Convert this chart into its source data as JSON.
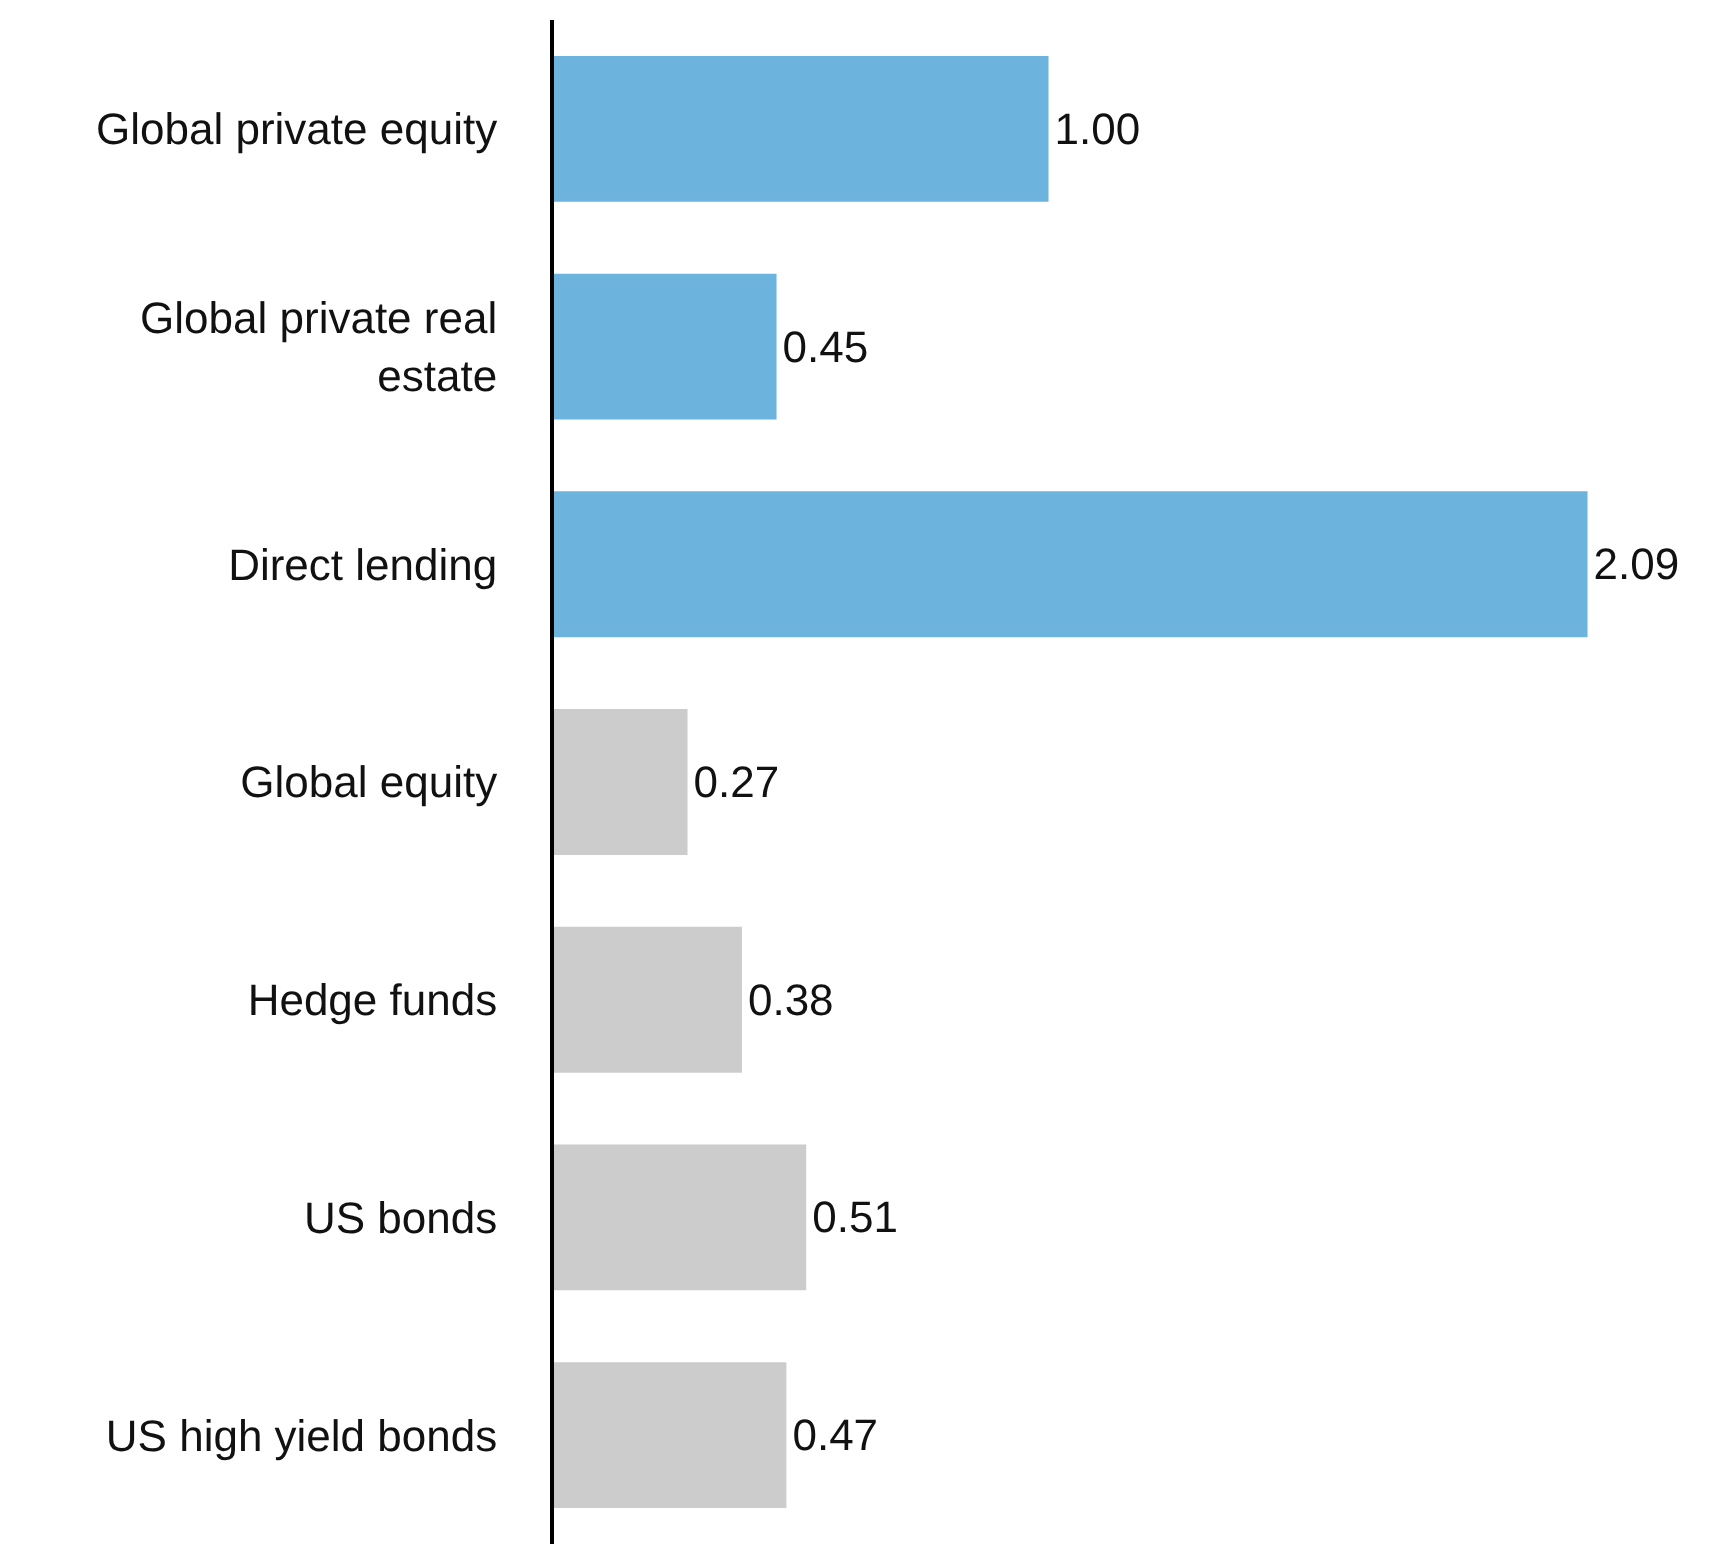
{
  "chart_data": {
    "type": "bar",
    "orientation": "horizontal",
    "categories": [
      "Global private equity",
      "Global private real estate",
      "Direct lending",
      "Global equity",
      "Hedge funds",
      "US bonds",
      "US high yield bonds"
    ],
    "values": [
      1.0,
      0.45,
      2.09,
      0.27,
      0.38,
      0.51,
      0.47
    ],
    "value_labels": [
      "1.00",
      "0.45",
      "2.09",
      "0.27",
      "0.38",
      "0.51",
      "0.47"
    ],
    "colors": [
      "#6cb4de",
      "#6cb4de",
      "#6cb4de",
      "#cccccc",
      "#cccccc",
      "#cccccc",
      "#cccccc"
    ],
    "xlim": [
      0,
      2.37
    ],
    "tick_labels": "y"
  }
}
